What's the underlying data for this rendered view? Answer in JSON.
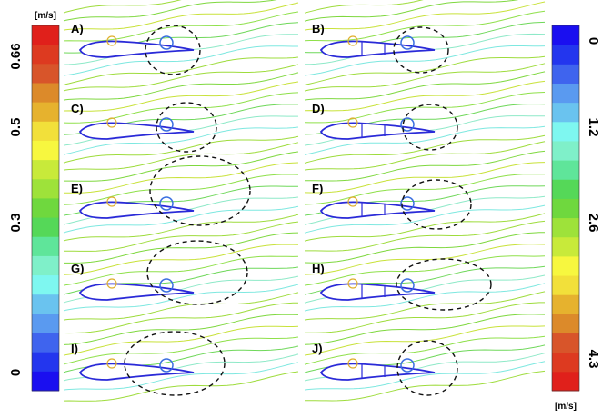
{
  "panels": [
    {
      "label": "A)"
    },
    {
      "label": "B)"
    },
    {
      "label": "C)"
    },
    {
      "label": "D)"
    },
    {
      "label": "E)"
    },
    {
      "label": "F)"
    },
    {
      "label": "G)"
    },
    {
      "label": "H)"
    },
    {
      "label": "I)"
    },
    {
      "label": "J)"
    }
  ],
  "left_colorbar": {
    "unit": "[m/s]",
    "ticks": [
      "0.66",
      "0.5",
      "0.3",
      "0"
    ]
  },
  "right_colorbar": {
    "unit": "[m/s]",
    "ticks": [
      "0",
      "1.2",
      "2.6",
      "4.3"
    ]
  }
}
